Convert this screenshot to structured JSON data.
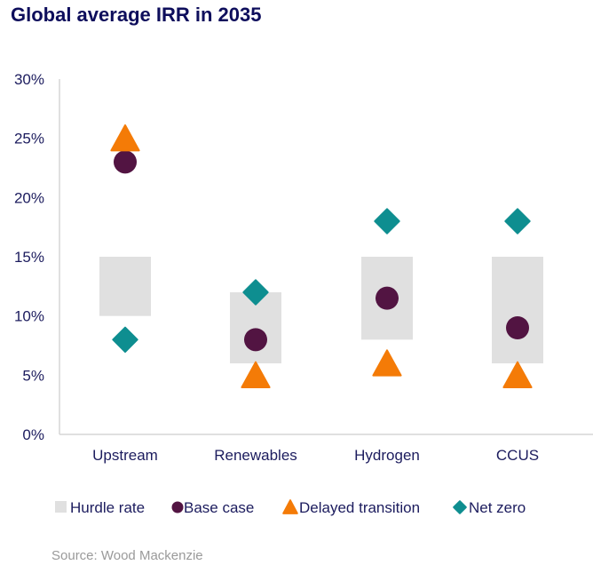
{
  "chart_data": {
    "type": "scatter",
    "title": "Global average IRR in 2035",
    "xlabel": "",
    "ylabel": "",
    "ylim": [
      0,
      30
    ],
    "yticks": [
      "0%",
      "5%",
      "10%",
      "15%",
      "20%",
      "25%",
      "30%"
    ],
    "ytick_values": [
      0,
      5,
      10,
      15,
      20,
      25,
      30
    ],
    "grid": false,
    "legend_position": "bottom",
    "categories": [
      "Upstream",
      "Renewables",
      "Hydrogen",
      "CCUS"
    ],
    "hurdle_rate": {
      "name": "Hurdle rate",
      "color": "#e0e0e0",
      "ranges": [
        [
          10,
          15
        ],
        [
          6,
          12
        ],
        [
          8,
          15
        ],
        [
          6,
          15
        ]
      ]
    },
    "series": [
      {
        "name": "Base case",
        "marker": "circle",
        "color": "#521442",
        "values": [
          23,
          8,
          11.5,
          9
        ]
      },
      {
        "name": "Delayed transition",
        "marker": "triangle",
        "color": "#f47b07",
        "values": [
          25,
          5,
          6,
          5
        ]
      },
      {
        "name": "Net zero",
        "marker": "diamond",
        "color": "#0e8e90",
        "values": [
          8,
          12,
          18,
          18
        ]
      }
    ]
  },
  "source": "Source: Wood Mackenzie"
}
